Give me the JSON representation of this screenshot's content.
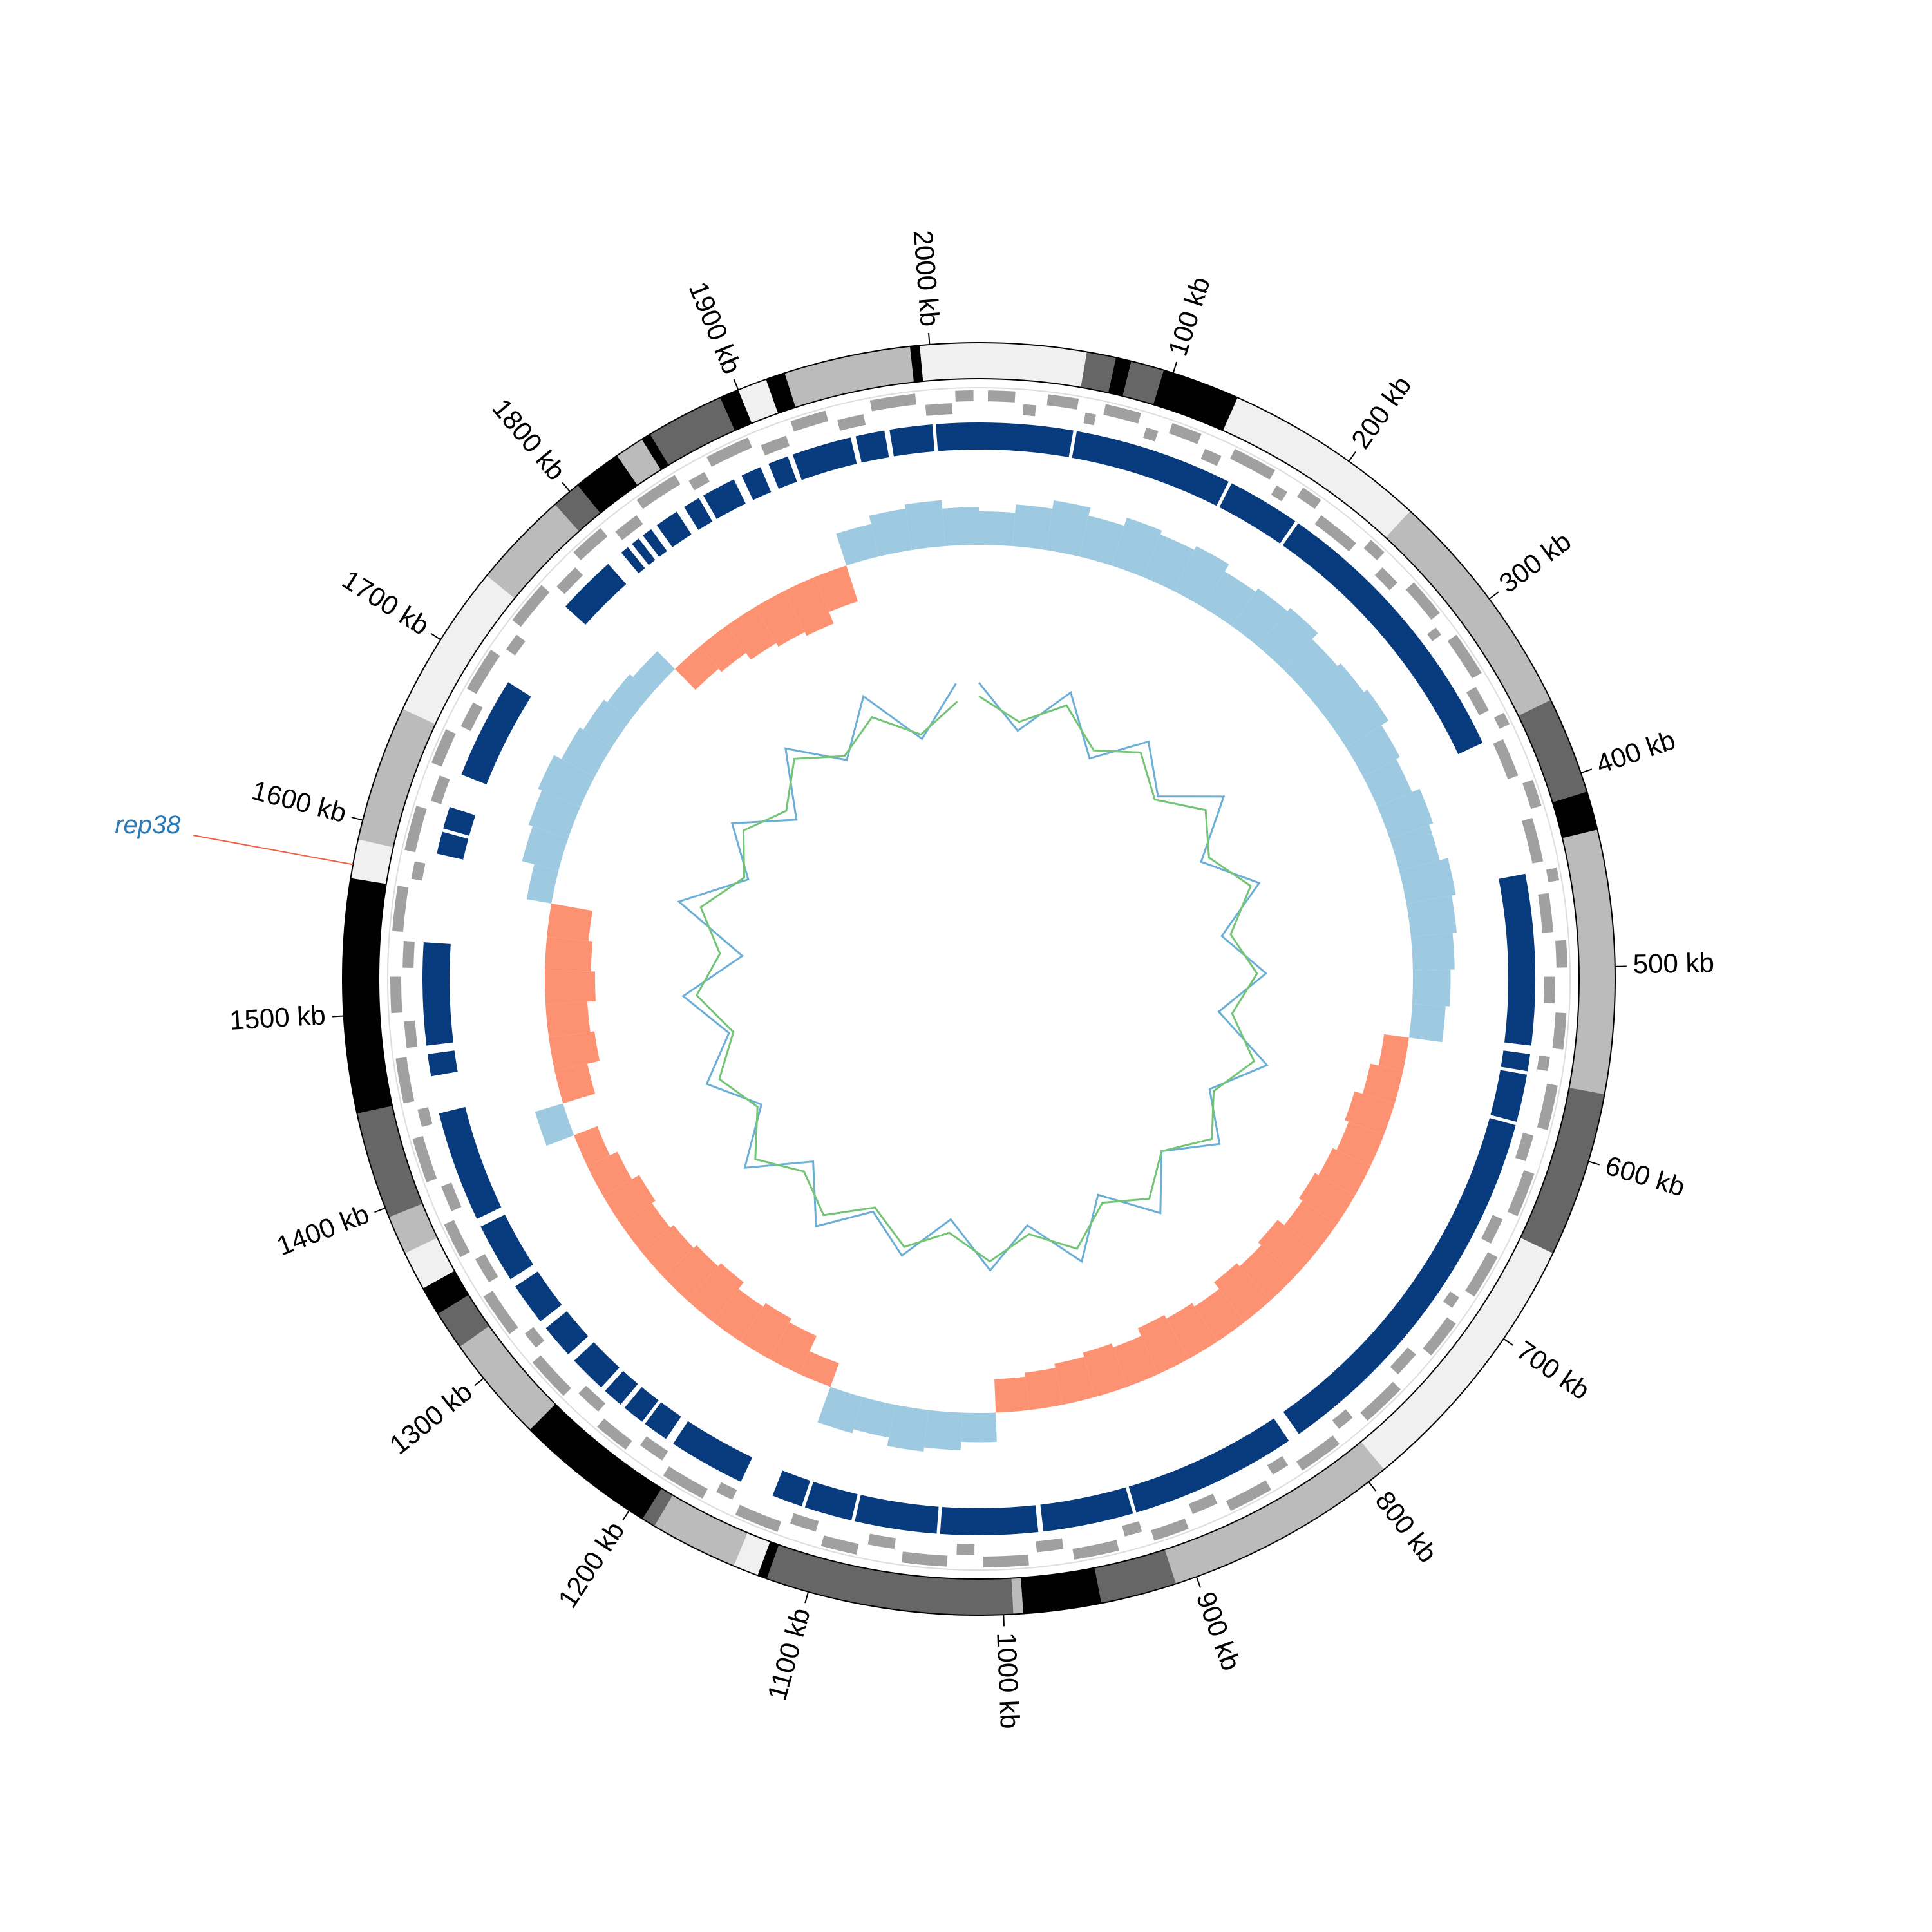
{
  "chart_data": {
    "type": "circos",
    "xlim": [
      0,
      2025
    ],
    "xticks": [
      {
        "value": 100,
        "label": "100 kb"
      },
      {
        "value": 200,
        "label": "200 kb"
      },
      {
        "value": 300,
        "label": "300 kb"
      },
      {
        "value": 400,
        "label": "400 kb"
      },
      {
        "value": 500,
        "label": "500 kb"
      },
      {
        "value": 600,
        "label": "600 kb"
      },
      {
        "value": 700,
        "label": "700 kb"
      },
      {
        "value": 800,
        "label": "800 kb"
      },
      {
        "value": 900,
        "label": "900 kb"
      },
      {
        "value": 1000,
        "label": "1000 kb"
      },
      {
        "value": 1100,
        "label": "1100 kb"
      },
      {
        "value": 1200,
        "label": "1200 kb"
      },
      {
        "value": 1300,
        "label": "1300 kb"
      },
      {
        "value": 1400,
        "label": "1400 kb"
      },
      {
        "value": 1500,
        "label": "1500 kb"
      },
      {
        "value": 1600,
        "label": "1600 kb"
      },
      {
        "value": 1700,
        "label": "1700 kb"
      },
      {
        "value": 1800,
        "label": "1800 kb"
      },
      {
        "value": 1900,
        "label": "1900 kb"
      },
      {
        "value": 2000,
        "label": "2000 kb"
      }
    ],
    "bands": [
      {
        "start": 0,
        "end": 55,
        "color": "#f0f0f0"
      },
      {
        "start": 55,
        "end": 70,
        "color": "#666666"
      },
      {
        "start": 70,
        "end": 78,
        "color": "#000000"
      },
      {
        "start": 78,
        "end": 95,
        "color": "#666666"
      },
      {
        "start": 95,
        "end": 135,
        "color": "#000000"
      },
      {
        "start": 135,
        "end": 240,
        "color": "#f0f0f0"
      },
      {
        "start": 240,
        "end": 360,
        "color": "#bbbbbb"
      },
      {
        "start": 360,
        "end": 410,
        "color": "#666666"
      },
      {
        "start": 410,
        "end": 430,
        "color": "#000000"
      },
      {
        "start": 430,
        "end": 565,
        "color": "#bbbbbb"
      },
      {
        "start": 565,
        "end": 650,
        "color": "#666666"
      },
      {
        "start": 650,
        "end": 790,
        "color": "#f0f0f0"
      },
      {
        "start": 790,
        "end": 911,
        "color": "#bbbbbb"
      },
      {
        "start": 911,
        "end": 950,
        "color": "#666666"
      },
      {
        "start": 950,
        "end": 990,
        "color": "#000000"
      },
      {
        "start": 990,
        "end": 995,
        "color": "#bbbbbb"
      },
      {
        "start": 995,
        "end": 1122,
        "color": "#666666"
      },
      {
        "start": 1122,
        "end": 1127,
        "color": "#000000"
      },
      {
        "start": 1127,
        "end": 1140,
        "color": "#f0f0f0"
      },
      {
        "start": 1140,
        "end": 1185,
        "color": "#bbbbbb"
      },
      {
        "start": 1185,
        "end": 1192,
        "color": "#666666"
      },
      {
        "start": 1192,
        "end": 1265,
        "color": "#000000"
      },
      {
        "start": 1265,
        "end": 1320,
        "color": "#bbbbbb"
      },
      {
        "start": 1320,
        "end": 1340,
        "color": "#666666"
      },
      {
        "start": 1340,
        "end": 1355,
        "color": "#000000"
      },
      {
        "start": 1355,
        "end": 1375,
        "color": "#f0f0f0"
      },
      {
        "start": 1375,
        "end": 1395,
        "color": "#bbbbbb"
      },
      {
        "start": 1395,
        "end": 1450,
        "color": "#666666"
      },
      {
        "start": 1450,
        "end": 1570,
        "color": "#000000"
      },
      {
        "start": 1570,
        "end": 1590,
        "color": "#f0f0f0"
      },
      {
        "start": 1590,
        "end": 1660,
        "color": "#bbbbbb"
      },
      {
        "start": 1660,
        "end": 1740,
        "color": "#f0f0f0"
      },
      {
        "start": 1740,
        "end": 1790,
        "color": "#bbbbbb"
      },
      {
        "start": 1790,
        "end": 1805,
        "color": "#666666"
      },
      {
        "start": 1805,
        "end": 1830,
        "color": "#000000"
      },
      {
        "start": 1830,
        "end": 1845,
        "color": "#bbbbbb"
      },
      {
        "start": 1845,
        "end": 1850,
        "color": "#000000"
      },
      {
        "start": 1850,
        "end": 1890,
        "color": "#666666"
      },
      {
        "start": 1890,
        "end": 1900,
        "color": "#000000"
      },
      {
        "start": 1900,
        "end": 1915,
        "color": "#f0f0f0"
      },
      {
        "start": 1915,
        "end": 1925,
        "color": "#000000"
      },
      {
        "start": 1925,
        "end": 1990,
        "color": "#bbbbbb"
      },
      {
        "start": 1990,
        "end": 1995,
        "color": "#000000"
      },
      {
        "start": 1995,
        "end": 2025,
        "color": "#f0f0f0"
      }
    ],
    "genes": {
      "color": "#a0a0a0",
      "items": [
        [
          5,
          20,
          1
        ],
        [
          25,
          32,
          -1
        ],
        [
          38,
          55,
          1
        ],
        [
          60,
          66,
          -1
        ],
        [
          70,
          90,
          1
        ],
        [
          95,
          102,
          -1
        ],
        [
          108,
          125,
          1
        ],
        [
          130,
          140,
          -1
        ],
        [
          145,
          170,
          1
        ],
        [
          175,
          182,
          -1
        ],
        [
          188,
          200,
          1
        ],
        [
          205,
          230,
          -1
        ],
        [
          235,
          245,
          1
        ],
        [
          250,
          262,
          -1
        ],
        [
          268,
          290,
          1
        ],
        [
          295,
          300,
          -1
        ],
        [
          305,
          330,
          1
        ],
        [
          335,
          350,
          -1
        ],
        [
          355,
          362,
          1
        ],
        [
          368,
          390,
          -1
        ],
        [
          395,
          410,
          1
        ],
        [
          415,
          440,
          -1
        ],
        [
          445,
          452,
          1
        ],
        [
          458,
          480,
          -1
        ],
        [
          485,
          500,
          1
        ],
        [
          505,
          520,
          -1
        ],
        [
          525,
          545,
          1
        ],
        [
          550,
          558,
          -1
        ],
        [
          565,
          590,
          1
        ],
        [
          595,
          610,
          -1
        ],
        [
          615,
          640,
          1
        ],
        [
          645,
          660,
          -1
        ],
        [
          665,
          690,
          1
        ],
        [
          695,
          702,
          -1
        ],
        [
          708,
          730,
          1
        ],
        [
          735,
          750,
          -1
        ],
        [
          755,
          780,
          1
        ],
        [
          785,
          795,
          -1
        ],
        [
          800,
          825,
          1
        ],
        [
          830,
          840,
          -1
        ],
        [
          845,
          870,
          1
        ],
        [
          875,
          890,
          -1
        ],
        [
          895,
          915,
          1
        ],
        [
          920,
          930,
          -1
        ],
        [
          935,
          960,
          1
        ],
        [
          965,
          980,
          -1
        ],
        [
          985,
          1010,
          1
        ],
        [
          1015,
          1025,
          -1
        ],
        [
          1030,
          1055,
          1
        ],
        [
          1060,
          1075,
          -1
        ],
        [
          1080,
          1100,
          1
        ],
        [
          1105,
          1120,
          -1
        ],
        [
          1125,
          1150,
          1
        ],
        [
          1155,
          1165,
          -1
        ],
        [
          1170,
          1195,
          1
        ],
        [
          1200,
          1215,
          -1
        ],
        [
          1220,
          1240,
          1
        ],
        [
          1245,
          1260,
          -1
        ],
        [
          1265,
          1290,
          1
        ],
        [
          1295,
          1305,
          -1
        ],
        [
          1310,
          1335,
          1
        ],
        [
          1340,
          1355,
          -1
        ],
        [
          1360,
          1380,
          1
        ],
        [
          1385,
          1400,
          -1
        ],
        [
          1405,
          1430,
          1
        ],
        [
          1435,
          1445,
          -1
        ],
        [
          1450,
          1475,
          1
        ],
        [
          1480,
          1495,
          -1
        ],
        [
          1500,
          1520,
          1
        ],
        [
          1525,
          1540,
          -1
        ],
        [
          1545,
          1570,
          1
        ],
        [
          1575,
          1585,
          -1
        ],
        [
          1590,
          1615,
          1
        ],
        [
          1620,
          1635,
          -1
        ],
        [
          1640,
          1660,
          1
        ],
        [
          1665,
          1680,
          -1
        ],
        [
          1685,
          1710,
          1
        ],
        [
          1715,
          1725,
          -1
        ],
        [
          1730,
          1755,
          1
        ],
        [
          1760,
          1775,
          -1
        ],
        [
          1780,
          1800,
          1
        ],
        [
          1805,
          1820,
          -1
        ],
        [
          1825,
          1850,
          1
        ],
        [
          1855,
          1865,
          -1
        ],
        [
          1870,
          1895,
          1
        ],
        [
          1900,
          1915,
          -1
        ],
        [
          1920,
          1940,
          1
        ],
        [
          1945,
          1960,
          -1
        ],
        [
          1965,
          1990,
          1
        ],
        [
          1995,
          2010,
          -1
        ],
        [
          2012,
          2022,
          1
        ]
      ]
    },
    "blocks": {
      "color": "#083b7d",
      "items": [
        [
          0,
          55
        ],
        [
          57,
          150
        ],
        [
          152,
          195
        ],
        [
          197,
          365
        ],
        [
          445,
          545
        ],
        [
          550,
          560
        ],
        [
          562,
          590
        ],
        [
          592,
          815
        ],
        [
          822,
          920
        ],
        [
          922,
          975
        ],
        [
          978,
          1035
        ],
        [
          1037,
          1085
        ],
        [
          1087,
          1115
        ],
        [
          1117,
          1135
        ],
        [
          1155,
          1200
        ],
        [
          1205,
          1220
        ],
        [
          1222,
          1235
        ],
        [
          1238,
          1250
        ],
        [
          1253,
          1275
        ],
        [
          1280,
          1300
        ],
        [
          1305,
          1330
        ],
        [
          1335,
          1370
        ],
        [
          1375,
          1440
        ],
        [
          1462,
          1475
        ],
        [
          1480,
          1540
        ],
        [
          1592,
          1605
        ],
        [
          1607,
          1620
        ],
        [
          1640,
          1700
        ],
        [
          1755,
          1790
        ],
        [
          1800,
          1805
        ],
        [
          1808,
          1813
        ],
        [
          1816,
          1822
        ],
        [
          1826,
          1840
        ],
        [
          1845,
          1855
        ],
        [
          1858,
          1878
        ],
        [
          1883,
          1895
        ],
        [
          1900,
          1912
        ],
        [
          1915,
          1950
        ],
        [
          1953,
          1970
        ],
        [
          1973,
          1998
        ],
        [
          2000,
          2025
        ]
      ]
    },
    "skew": {
      "colors": {
        "positive": "#9ecae1",
        "negative": "#fc9272"
      },
      "x": [
        0,
        25,
        50,
        75,
        100,
        125,
        150,
        175,
        200,
        225,
        250,
        275,
        300,
        325,
        350,
        375,
        400,
        425,
        450,
        475,
        500,
        525,
        550,
        575,
        600,
        625,
        650,
        675,
        700,
        725,
        750,
        775,
        800,
        825,
        850,
        875,
        900,
        925,
        950,
        975,
        1000,
        1025,
        1050,
        1075,
        1100,
        1125,
        1150,
        1175,
        1200,
        1225,
        1250,
        1275,
        1300,
        1325,
        1350,
        1375,
        1400,
        1425,
        1450,
        1475,
        1500,
        1525,
        1550,
        1575,
        1600,
        1625,
        1650,
        1675,
        1700,
        1725,
        1750,
        1775,
        1800,
        1825,
        1850,
        1875,
        1900,
        1925,
        1950,
        1975,
        2000
      ],
      "values": [
        0.4,
        0.5,
        0.6,
        0.5,
        0.6,
        0.55,
        0.6,
        0.5,
        0.55,
        0.6,
        0.5,
        0.55,
        0.6,
        0.5,
        0.45,
        0.55,
        0.5,
        0.6,
        0.55,
        0.5,
        0.45,
        0.4,
        -0.3,
        -0.4,
        -0.5,
        -0.45,
        -0.5,
        -0.55,
        -0.5,
        -0.6,
        -0.55,
        -0.6,
        -0.5,
        -0.55,
        -0.6,
        -0.5,
        -0.55,
        -0.5,
        -0.45,
        -0.4,
        0.35,
        0.45,
        0.5,
        0.4,
        0.45,
        -0.3,
        -0.5,
        -0.55,
        -0.5,
        -0.6,
        -0.55,
        -0.5,
        -0.45,
        -0.5,
        -0.4,
        -0.3,
        0.35,
        -0.4,
        -0.55,
        -0.5,
        -0.6,
        -0.55,
        -0.5,
        0.3,
        0.45,
        0.5,
        0.55,
        0.45,
        0.4,
        0.35,
        0.3,
        -0.35,
        -0.4,
        -0.5,
        -0.55,
        -0.6,
        -0.45,
        0.4,
        0.5,
        0.55,
        0.45
      ]
    },
    "lines": {
      "x": [
        0,
        50,
        100,
        150,
        200,
        250,
        300,
        350,
        400,
        450,
        500,
        550,
        600,
        650,
        700,
        750,
        800,
        850,
        900,
        950,
        1000,
        1050,
        1100,
        1150,
        1200,
        1250,
        1300,
        1350,
        1400,
        1450,
        1500,
        1550,
        1600,
        1650,
        1700,
        1750,
        1800,
        1850,
        1900,
        1950,
        2000
      ],
      "series": [
        {
          "color": "#6baed6",
          "values": [
            0.6,
            -0.4,
            0.7,
            -0.5,
            0.5,
            -0.3,
            0.8,
            -0.4,
            0.6,
            -0.5,
            0.4,
            -0.6,
            0.7,
            -0.3,
            0.5,
            -0.4,
            0.6,
            -0.5,
            0.7,
            -0.4,
            0.5,
            -0.6,
            0.4,
            -0.3,
            0.6,
            -0.5,
            0.7,
            -0.4,
            0.5,
            -0.3,
            0.6,
            -0.7,
            0.9,
            -0.4,
            0.5,
            -0.6,
            0.7,
            -0.3,
            0.8,
            -0.5,
            0.6
          ]
        },
        {
          "color": "#74c476",
          "values": [
            0.3,
            -0.2,
            0.4,
            -0.3,
            0.2,
            -0.4,
            0.3,
            -0.2,
            0.4,
            -0.3,
            0.2,
            -0.3,
            0.4,
            -0.2,
            0.3,
            -0.4,
            0.2,
            -0.3,
            0.4,
            -0.2,
            0.3,
            -0.3,
            0.2,
            -0.4,
            0.3,
            -0.2,
            0.4,
            -0.3,
            0.2,
            -0.4,
            0.3,
            -0.2,
            0.4,
            -0.3,
            0.2,
            -0.3,
            0.4,
            -0.2,
            0.3,
            -0.4,
            0.2
          ]
        }
      ]
    },
    "annotations": [
      {
        "label": "rep38",
        "position": 1577,
        "color": "#2a7ab8",
        "line_color": "#f06040"
      }
    ]
  }
}
